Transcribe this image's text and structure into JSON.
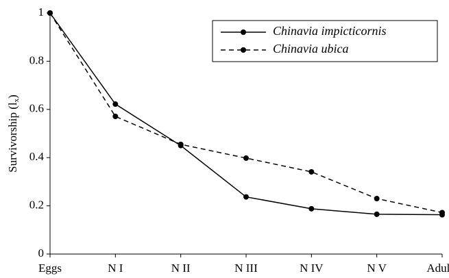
{
  "chart_data": {
    "type": "line",
    "categories": [
      "Eggs",
      "N I",
      "N II",
      "N III",
      "N IV",
      "N V",
      "Adults"
    ],
    "ylabel": "Survivorship (l",
    "ylabel_subscript": "x",
    "ylabel_end": ")",
    "ylim": [
      0,
      1
    ],
    "yticks": [
      0,
      0.2,
      0.4,
      0.6,
      0.8,
      1
    ],
    "legend": "top-right",
    "series": [
      {
        "name": "Chinavia impicticornis",
        "color": "#000000",
        "dash": false,
        "values": [
          1,
          0.622,
          0.45,
          0.237,
          0.188,
          0.165,
          0.163
        ]
      },
      {
        "name": "Chinavia ubica",
        "color": "#000000",
        "dash": true,
        "values": [
          1,
          0.571,
          0.455,
          0.398,
          0.341,
          0.23,
          0.172
        ]
      }
    ]
  }
}
